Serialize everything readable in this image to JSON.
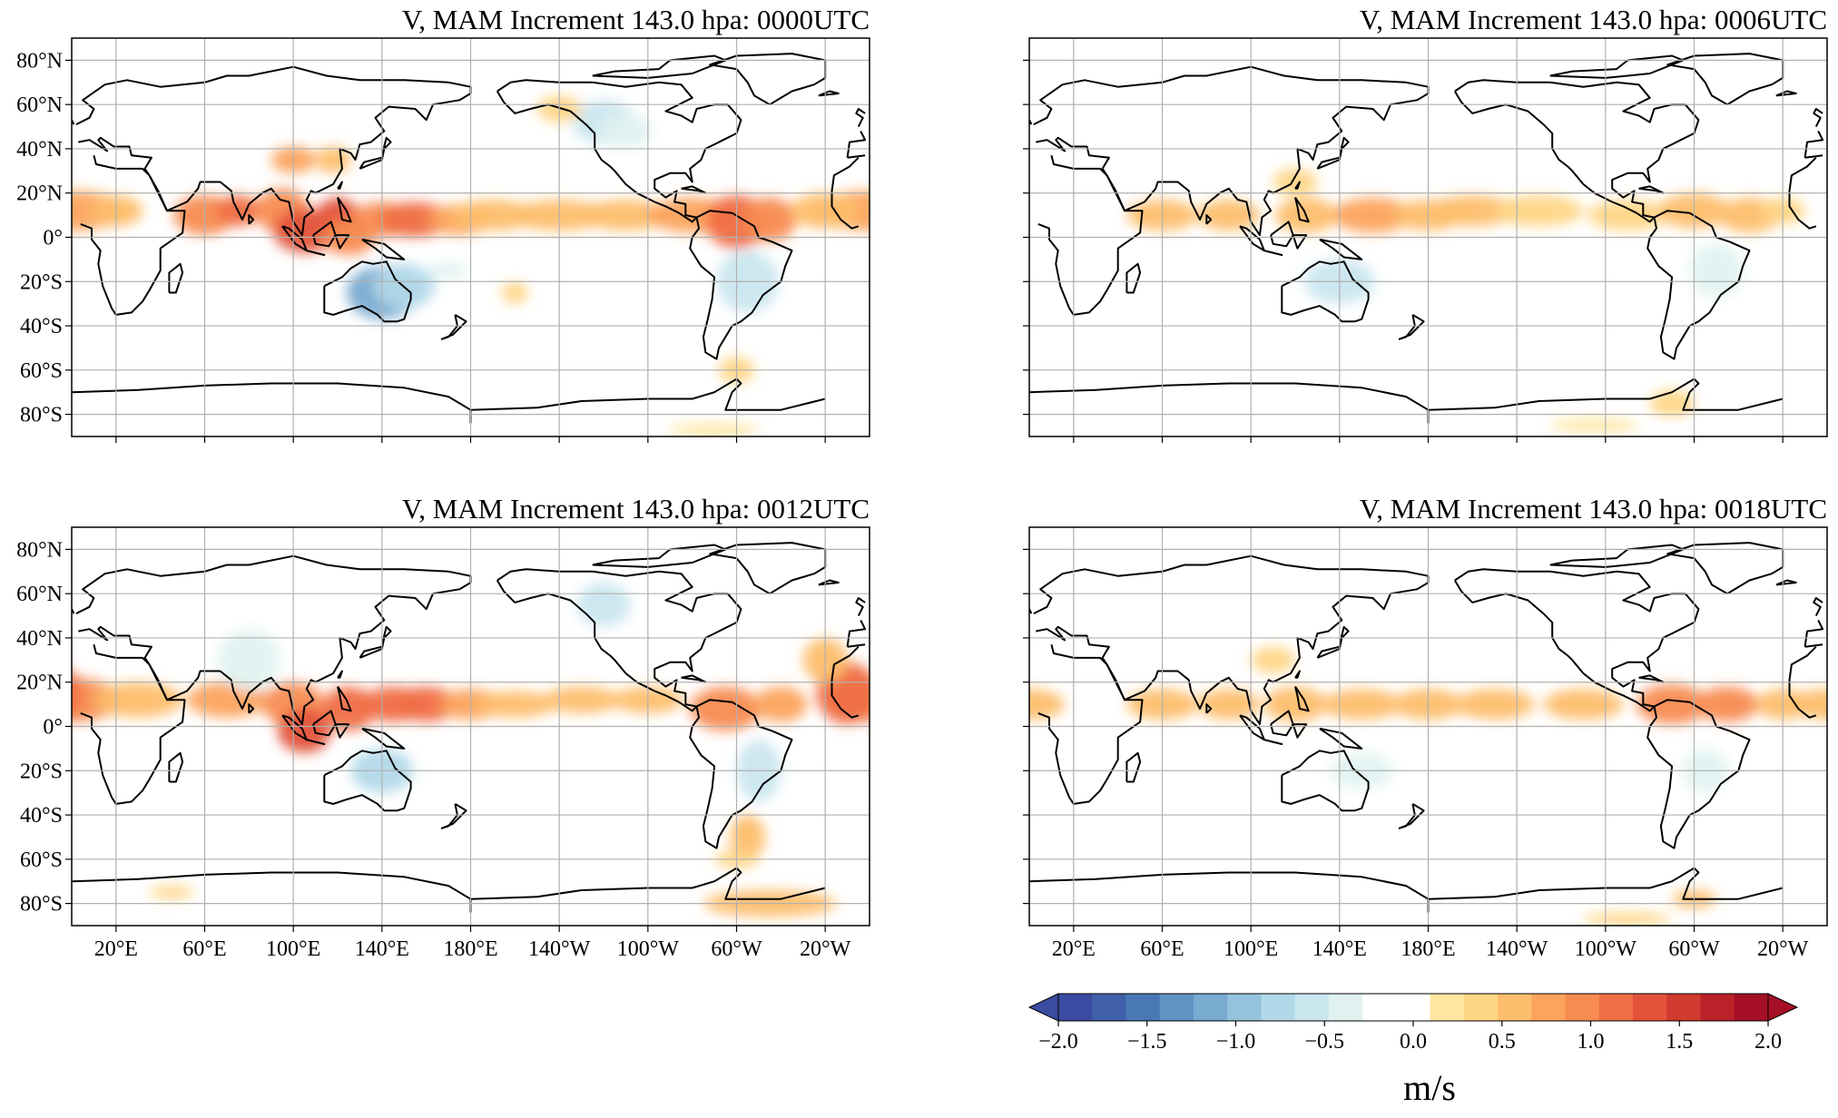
{
  "figure": {
    "panels": [
      {
        "title": "V, MAM Increment 143.0 hpa: 0000UTC"
      },
      {
        "title": "V, MAM Increment 143.0 hpa: 0006UTC"
      },
      {
        "title": "V, MAM Increment 143.0 hpa: 0012UTC"
      },
      {
        "title": "V, MAM Increment 143.0 hpa: 0018UTC"
      }
    ],
    "lat_labels": [
      "80°N",
      "60°N",
      "40°N",
      "20°N",
      "0°",
      "20°S",
      "40°S",
      "60°S",
      "80°S"
    ],
    "lon_labels": [
      "20°E",
      "60°E",
      "100°E",
      "140°E",
      "180°E",
      "140°W",
      "100°W",
      "60°W",
      "20°W"
    ],
    "lat_values": [
      80,
      60,
      40,
      20,
      0,
      -20,
      -40,
      -60,
      -80
    ],
    "lon_values": [
      20,
      60,
      100,
      140,
      180,
      -140,
      -100,
      -60,
      -20
    ],
    "map_extent": {
      "lon_min": 0,
      "lon_max": 360,
      "lat_min": -90,
      "lat_max": 90,
      "central_longitude": 180
    },
    "colorbar": {
      "label": "m/s",
      "vmin": -2.0,
      "vmax": 2.0,
      "tick_labels": [
        "−2.0",
        "−1.5",
        "−1.0",
        "−0.5",
        "0.0",
        "0.5",
        "1.0",
        "1.5",
        "2.0"
      ],
      "extend": "both",
      "colors": [
        "#3b4ba1",
        "#4061a9",
        "#4a78b4",
        "#6093c2",
        "#79aad0",
        "#95c3dd",
        "#b2d9e9",
        "#cae6ef",
        "#e0f2f0",
        "#ffffff",
        "#ffffff",
        "#fee6a0",
        "#fed585",
        "#fdbe6c",
        "#fca35d",
        "#f88b51",
        "#f06e45",
        "#e3523a",
        "#d03a2f",
        "#bb2128",
        "#a50f26"
      ]
    }
  }
}
